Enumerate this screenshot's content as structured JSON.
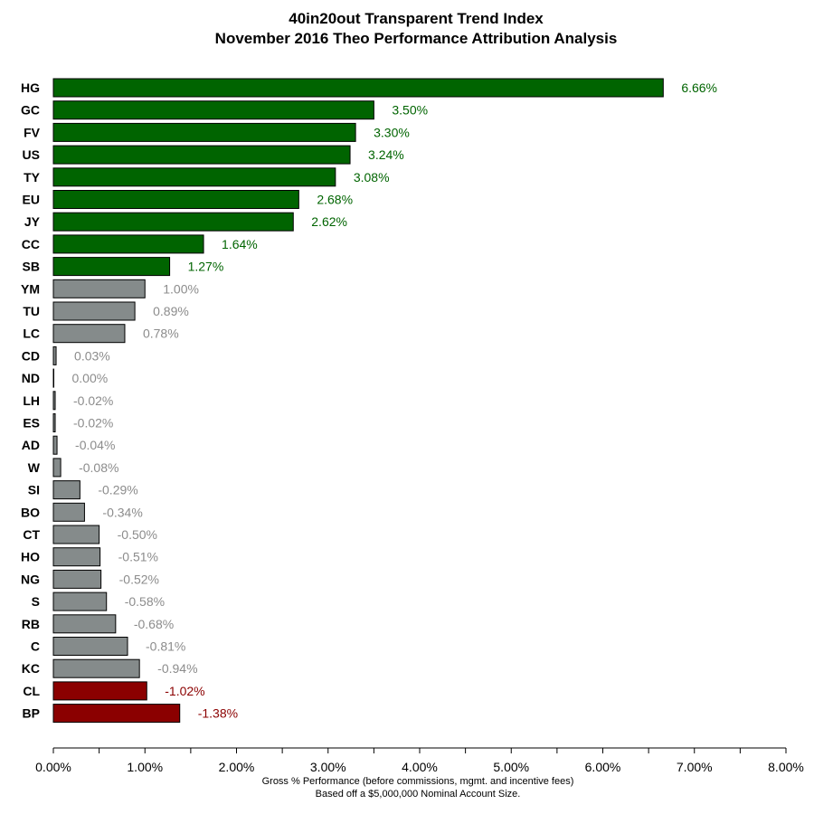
{
  "chart_data": {
    "type": "bar",
    "orientation": "horizontal",
    "title": "40in20out Transparent Trend Index",
    "subtitle": "November 2016 Theo Performance Attribution Analysis",
    "xlabel": "Gross % Performance (before commissions, mgmt. and incentive fees)",
    "xlabel_note": "Based off a $5,000,000 Nominal Account Size.",
    "ylabel": "",
    "xlim": [
      0,
      8
    ],
    "x_ticks": [
      0,
      1,
      2,
      3,
      4,
      5,
      6,
      7,
      8
    ],
    "x_tick_labels": [
      "0.00%",
      "1.00%",
      "2.00%",
      "3.00%",
      "4.00%",
      "5.00%",
      "6.00%",
      "7.00%",
      "8.00%"
    ],
    "grid": false,
    "bar_length": "absolute value",
    "categories": [
      "HG",
      "GC",
      "FV",
      "US",
      "TY",
      "EU",
      "JY",
      "CC",
      "SB",
      "YM",
      "TU",
      "LC",
      "CD",
      "ND",
      "LH",
      "ES",
      "AD",
      "W",
      "SI",
      "BO",
      "CT",
      "HO",
      "NG",
      "S",
      "RB",
      "C",
      "KC",
      "CL",
      "BP"
    ],
    "values": [
      6.66,
      3.5,
      3.3,
      3.24,
      3.08,
      2.68,
      2.62,
      1.64,
      1.27,
      1.0,
      0.89,
      0.78,
      0.03,
      0.0,
      -0.02,
      -0.02,
      -0.04,
      -0.08,
      -0.29,
      -0.34,
      -0.5,
      -0.51,
      -0.52,
      -0.58,
      -0.68,
      -0.81,
      -0.94,
      -1.02,
      -1.38
    ],
    "value_labels": [
      "6.66%",
      "3.50%",
      "3.30%",
      "3.24%",
      "3.08%",
      "2.68%",
      "2.62%",
      "1.64%",
      "1.27%",
      "1.00%",
      "0.89%",
      "0.78%",
      "0.03%",
      "0.00%",
      "-0.02%",
      "-0.02%",
      "-0.04%",
      "-0.08%",
      "-0.29%",
      "-0.34%",
      "-0.50%",
      "-0.51%",
      "-0.52%",
      "-0.58%",
      "-0.68%",
      "-0.81%",
      "-0.94%",
      "-1.02%",
      "-1.38%"
    ],
    "groups": [
      "winner",
      "winner",
      "winner",
      "winner",
      "winner",
      "winner",
      "winner",
      "winner",
      "winner",
      "neutral",
      "neutral",
      "neutral",
      "neutral",
      "neutral",
      "neutral",
      "neutral",
      "neutral",
      "neutral",
      "neutral",
      "neutral",
      "neutral",
      "neutral",
      "neutral",
      "neutral",
      "neutral",
      "neutral",
      "neutral",
      "loser",
      "loser"
    ],
    "colors": {
      "winner_bar": "#006400",
      "winner_text": "#006400",
      "neutral_bar": "#858b8b",
      "neutral_text": "#8c8c8c",
      "loser_bar": "#8b0000",
      "loser_text": "#8b0000"
    }
  }
}
